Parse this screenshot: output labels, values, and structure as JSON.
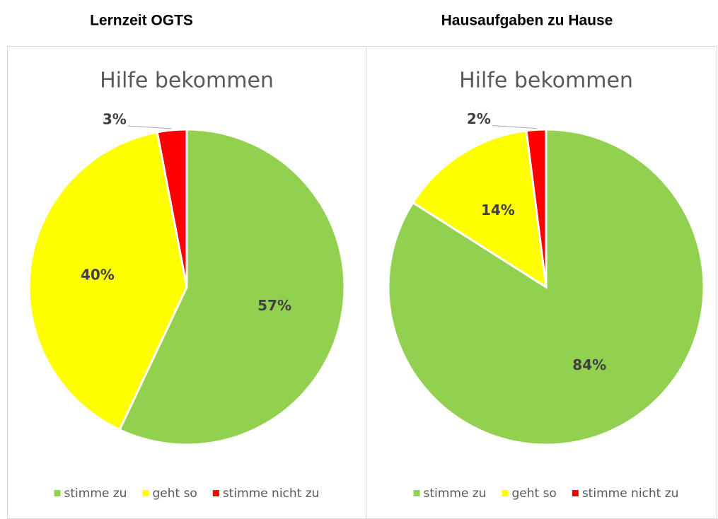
{
  "headings": [
    "Lernzeit OGTS",
    "Hausaufgaben zu Hause"
  ],
  "chart_data": [
    {
      "type": "pie",
      "title": "Hilfe bekommen",
      "categories": [
        "stimme zu",
        "geht so",
        "stimme nicht zu"
      ],
      "values": [
        57,
        40,
        3
      ],
      "value_labels": [
        "57%",
        "40%",
        "3%"
      ],
      "colors": [
        "#92d050",
        "#ffff00",
        "#ff0000"
      ],
      "legend": "bottom"
    },
    {
      "type": "pie",
      "title": "Hilfe bekommen",
      "categories": [
        "stimme zu",
        "geht so",
        "stimme nicht zu"
      ],
      "values": [
        84,
        14,
        2
      ],
      "value_labels": [
        "84%",
        "14%",
        "2%"
      ],
      "colors": [
        "#92d050",
        "#ffff00",
        "#ff0000"
      ],
      "legend": "bottom"
    }
  ]
}
